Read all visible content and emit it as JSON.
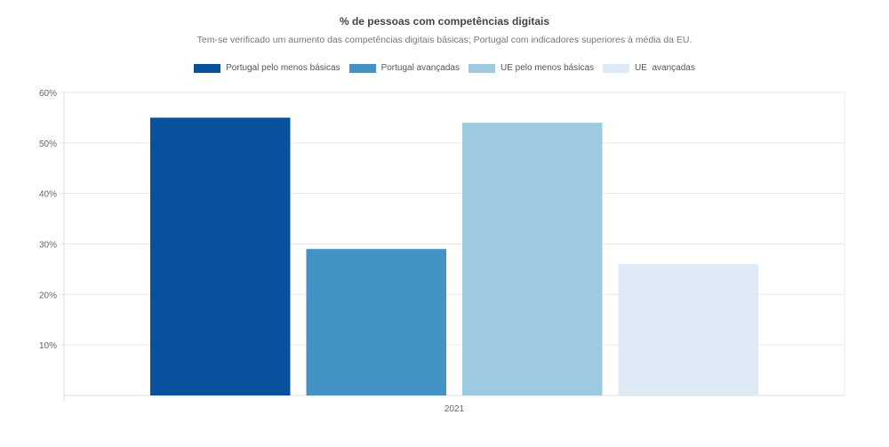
{
  "chart_data": {
    "type": "bar",
    "title": "% de pessoas com competências digitais",
    "subtitle": "Tem-se verificado um aumento das competências digitais básicas; Portugal com indicadores superiores à média da EU.",
    "categories": [
      "2021"
    ],
    "series": [
      {
        "name": "Portugal pelo menos básicas",
        "values": [
          55
        ],
        "color": "#08519c"
      },
      {
        "name": "Portugal avançadas",
        "values": [
          29
        ],
        "color": "#4292c6"
      },
      {
        "name": "UE pelo menos básicas",
        "values": [
          54
        ],
        "color": "#9ecae1"
      },
      {
        "name": "UE  avançadas",
        "values": [
          26
        ],
        "color": "#deebf7"
      }
    ],
    "ylim": [
      0,
      60
    ],
    "yticks": [
      10,
      20,
      30,
      40,
      50,
      60
    ],
    "ytick_labels": [
      "10%",
      "20%",
      "30%",
      "40%",
      "50%",
      "60%"
    ],
    "grid": true,
    "legend": "top-center",
    "xlabel": "",
    "ylabel": ""
  }
}
